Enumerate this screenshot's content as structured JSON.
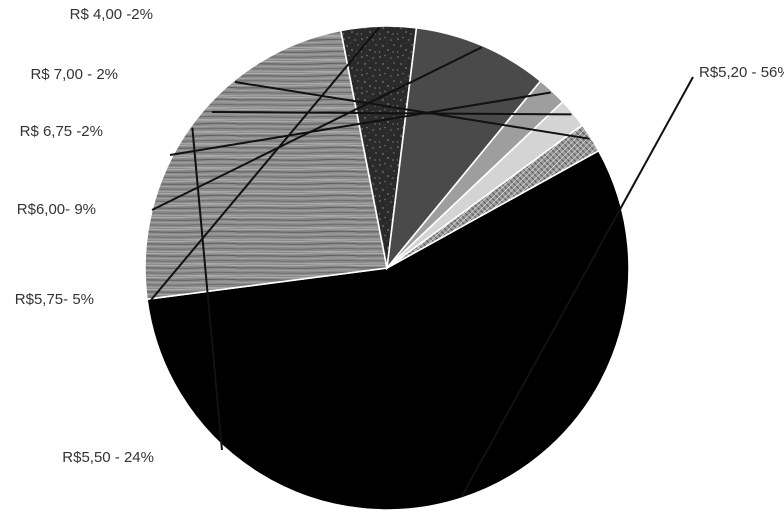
{
  "chart_data": {
    "type": "pie",
    "title": "",
    "legend": "none",
    "slices": [
      {
        "label": "R$5,20 - 56%",
        "value": 56,
        "color": "#000000",
        "pattern": "solid"
      },
      {
        "label": "R$5,50 - 24%",
        "value": 24,
        "color": "#8a8a8a",
        "pattern": "wood-grain"
      },
      {
        "label": "R$5,75- 5%",
        "value": 5,
        "color": "#2a2a2a",
        "pattern": "granite"
      },
      {
        "label": "R$6,00- 9%",
        "value": 9,
        "color": "#4a4a4a",
        "pattern": "solid"
      },
      {
        "label": "R$ 6,75 -2%",
        "value": 2,
        "color": "#9e9e9e",
        "pattern": "solid"
      },
      {
        "label": "R$ 7,00 - 2%",
        "value": 2,
        "color": "#d4d4d4",
        "pattern": "solid"
      },
      {
        "label": "R$ 4,00 -2%",
        "value": 2,
        "color": "#8c8c8c",
        "pattern": "crosshatch"
      }
    ]
  }
}
